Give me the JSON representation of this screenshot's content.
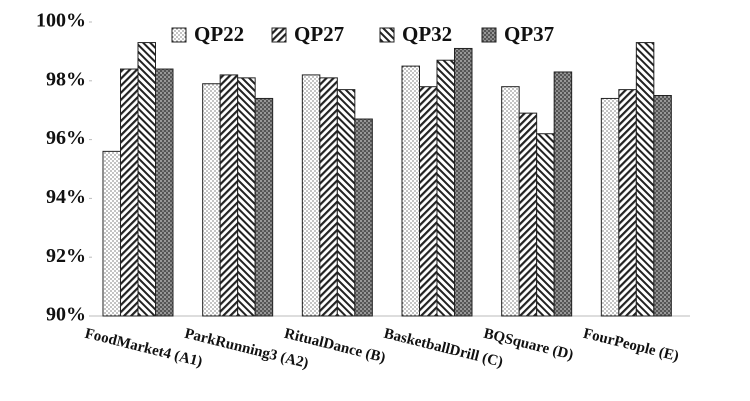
{
  "chart_data": {
    "type": "bar",
    "categories": [
      "FoodMarket4 (A1)",
      "ParkRunning3 (A2)",
      "RitualDance (B)",
      "BasketballDrill (C)",
      "BQSquare (D)",
      "FourPeople (E)"
    ],
    "series": [
      {
        "name": "QP22",
        "values": [
          95.6,
          97.9,
          98.2,
          98.5,
          97.8,
          97.4
        ]
      },
      {
        "name": "QP27",
        "values": [
          98.4,
          98.2,
          98.1,
          97.8,
          96.9,
          97.7
        ]
      },
      {
        "name": "QP32",
        "values": [
          99.3,
          98.1,
          97.7,
          98.7,
          96.2,
          99.3
        ]
      },
      {
        "name": "QP37",
        "values": [
          98.4,
          97.4,
          96.7,
          99.1,
          98.3,
          97.5
        ]
      }
    ],
    "ylim": [
      90,
      100
    ],
    "yticks": [
      {
        "value": 90,
        "label": "90%"
      },
      {
        "value": 92,
        "label": "92%"
      },
      {
        "value": 94,
        "label": "94%"
      },
      {
        "value": 96,
        "label": "96%"
      },
      {
        "value": 98,
        "label": "98%"
      },
      {
        "value": 100,
        "label": "100%"
      }
    ]
  }
}
